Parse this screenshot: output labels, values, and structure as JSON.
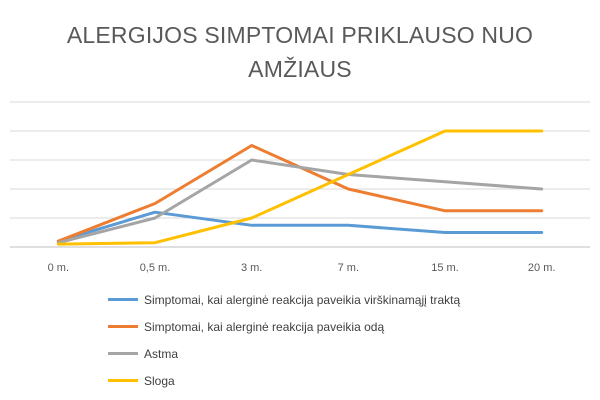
{
  "chart_data": {
    "type": "line",
    "title_lines": [
      "ALERGIJOS SIMPTOMAI PRIKLAUSO NUO",
      "AMŽIAUS"
    ],
    "categories": [
      "0 m.",
      "0,5 m.",
      "3 m.",
      "7 m.",
      "15 m.",
      "20 m."
    ],
    "ylim": [
      0,
      40
    ],
    "grid": true,
    "legend_position": "bottom",
    "series": [
      {
        "name": "Simptomai, kai alerginė reakcija paveikia virškinamąjį traktą",
        "color": "#5B9BD5",
        "values": [
          2,
          12,
          7.5,
          7.5,
          5,
          5
        ]
      },
      {
        "name": "Simptomai, kai alerginė reakcija paveikia odą",
        "color": "#ED7D31",
        "values": [
          2,
          15,
          35,
          20,
          12.5,
          12.5
        ]
      },
      {
        "name": "Astma",
        "color": "#A5A5A5",
        "values": [
          1.5,
          10,
          30,
          25,
          22.5,
          20
        ]
      },
      {
        "name": "Sloga",
        "color": "#FFC000",
        "values": [
          1,
          1.5,
          10,
          25,
          40,
          40
        ]
      }
    ]
  }
}
